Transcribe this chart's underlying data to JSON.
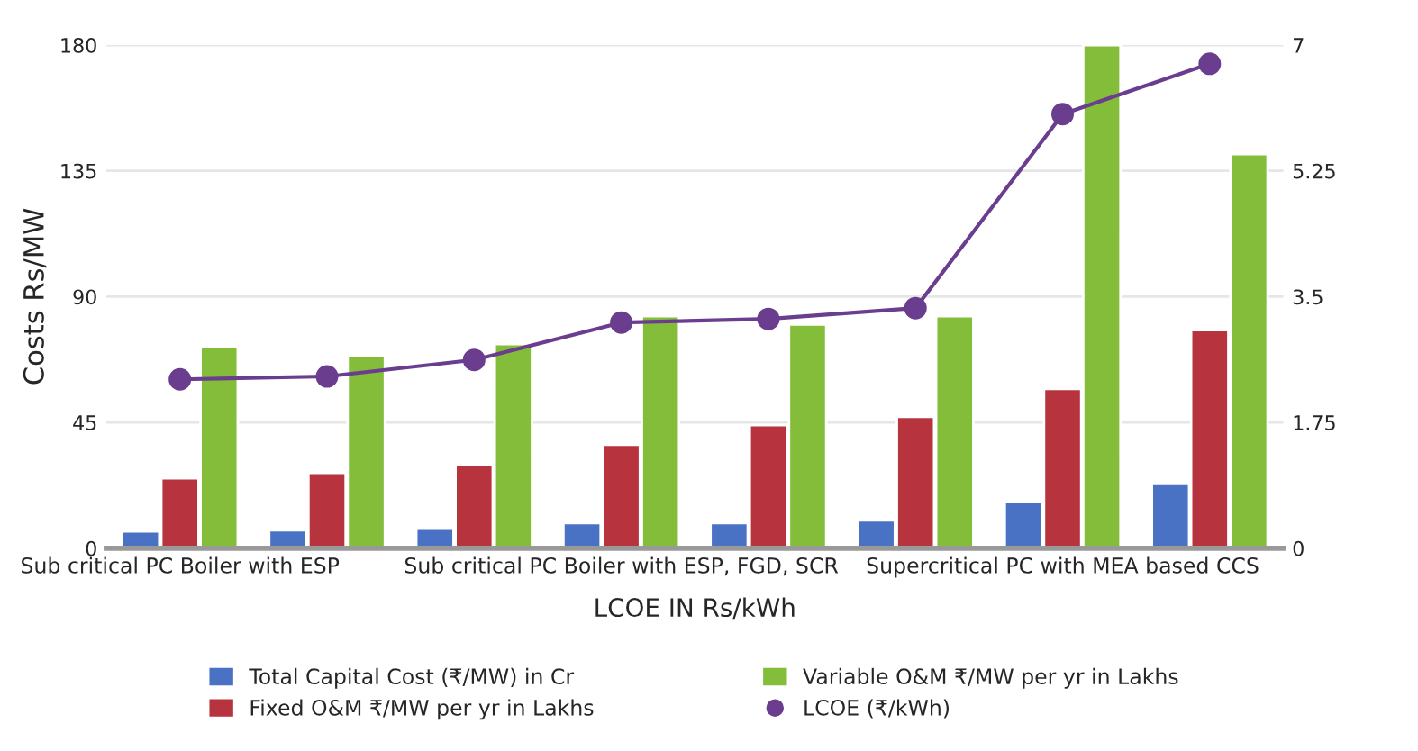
{
  "chart_data": {
    "type": "bar",
    "categories": [
      "Sub critical PC Boiler with ESP",
      null,
      null,
      "Sub critical PC Boiler with ESP, FGD, SCR",
      null,
      null,
      "Supercritical PC with MEA based CCS",
      null
    ],
    "series": [
      {
        "name": "Total Capital Cost (₹/MW) in Cr",
        "color": "#4a72c4",
        "values": [
          6,
          6.4,
          7,
          9,
          9,
          10,
          16.5,
          23
        ]
      },
      {
        "name": "Fixed O&M ₹/MW per yr in Lakhs",
        "color": "#b7343f",
        "values": [
          25,
          27,
          30,
          37,
          44,
          47,
          57,
          78
        ]
      },
      {
        "name": "Variable O&M ₹/MW per yr in Lakhs",
        "color": "#84bd3a",
        "values": [
          72,
          69,
          73,
          83,
          80,
          83,
          180,
          141
        ]
      },
      {
        "name": "LCOE (₹/kWh)",
        "color": "#6a3d8f",
        "type": "line",
        "axis": "y2",
        "marker": "circle",
        "values": [
          2.35,
          2.39,
          2.62,
          3.14,
          3.19,
          3.34,
          6.04,
          6.74
        ]
      }
    ],
    "xlabel": "LCOE IN Rs/kWh",
    "ylabel": "Costs Rs/MW",
    "ylim": [
      0,
      180
    ],
    "yticks": [
      0,
      45,
      90,
      135,
      180
    ],
    "y2lim": [
      0,
      7
    ],
    "y2ticks": [
      0,
      1.75,
      3.5,
      5.25,
      7
    ],
    "grid": "y",
    "legend": "bottom"
  }
}
